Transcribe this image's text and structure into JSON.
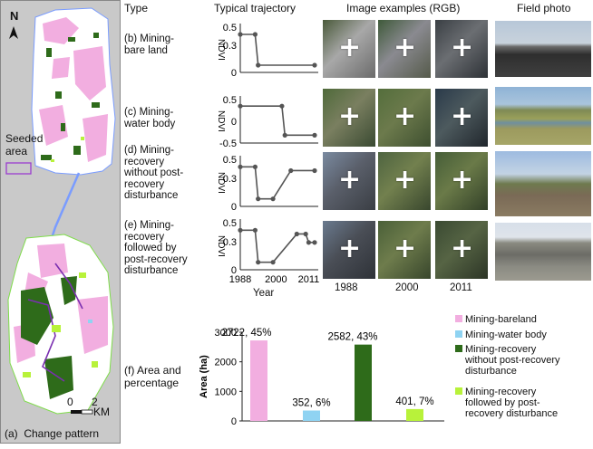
{
  "columns": {
    "type": "Type",
    "trajectory": "Typical trajectory",
    "images": "Image examples (RGB)",
    "field": "Field photo"
  },
  "map": {
    "north": "N",
    "seeded_label": "Seeded\narea",
    "scale_zero": "0",
    "scale_two": "2",
    "scale_unit": "KM",
    "caption": "(a)  Change pattern"
  },
  "rows": [
    {
      "label": "(b) Mining-\nbare land",
      "ndvi": [
        [
          1988,
          0.42
        ],
        [
          1993,
          0.42
        ],
        [
          1994,
          0.08
        ],
        [
          2013,
          0.08
        ]
      ],
      "yticks": [
        "0.5",
        "0.3",
        "0"
      ]
    },
    {
      "label": "(c) Mining-\nwater body",
      "ndvi": [
        [
          1988,
          0.35
        ],
        [
          2002,
          0.35
        ],
        [
          2003,
          -0.32
        ],
        [
          2013,
          -0.32
        ]
      ],
      "yticks": [
        "0.5",
        "0",
        "-0.5"
      ]
    },
    {
      "label": "(d) Mining-\nrecovery\nwithout post-\nrecovery\ndisturbance",
      "ndvi": [
        [
          1988,
          0.42
        ],
        [
          1993,
          0.42
        ],
        [
          1994,
          0.08
        ],
        [
          1999,
          0.08
        ],
        [
          2005,
          0.38
        ],
        [
          2013,
          0.38
        ]
      ],
      "yticks": [
        "0.5",
        "0.3",
        "0"
      ]
    },
    {
      "label": "(e) Mining-\nrecovery\nfollowed by\npost-recovery\ndisturbance",
      "ndvi": [
        [
          1988,
          0.42
        ],
        [
          1993,
          0.42
        ],
        [
          1994,
          0.08
        ],
        [
          1999,
          0.08
        ],
        [
          2007,
          0.38
        ],
        [
          2010,
          0.38
        ],
        [
          2011,
          0.29
        ],
        [
          2013,
          0.29
        ]
      ],
      "yticks": [
        "0.5",
        "0.3",
        "0"
      ]
    }
  ],
  "trajectory_axis": {
    "ylabel": "NDVI",
    "xlabel": "Year",
    "xticks": [
      "1988",
      "2000",
      "2011"
    ]
  },
  "image_years": [
    "1988",
    "2000",
    "2011"
  ],
  "area_label": "(f) Area and\npercentage",
  "chart_data": {
    "type": "bar",
    "categories": [
      "Mining-bareland",
      "Mining-water body",
      "Mining-recovery without post-recovery disturbance",
      "Mining-recovery followed by post-recovery disturbance"
    ],
    "values": [
      2722,
      352,
      2582,
      401
    ],
    "data_labels": [
      "2722, 45%",
      "352,  6%",
      "2582, 43%",
      "401, 7%"
    ],
    "colors": [
      "#f2aee0",
      "#8fd3f2",
      "#2e6b1a",
      "#b8f23a"
    ],
    "ylabel": "Area (ha)",
    "yticks": [
      "3000",
      "2000",
      "1000",
      "0"
    ],
    "ylim": [
      0,
      3000
    ],
    "legend": [
      {
        "text": "Mining-bareland",
        "color": "#f2aee0"
      },
      {
        "text": "Mining-water body",
        "color": "#8fd3f2"
      },
      {
        "text": "Mining-recovery\nwithout post-recovery\ndisturbance",
        "color": "#2e6b1a"
      },
      {
        "text": "Mining-recovery\nfollowed by post-\nrecovery disturbance",
        "color": "#b8f23a"
      }
    ]
  }
}
